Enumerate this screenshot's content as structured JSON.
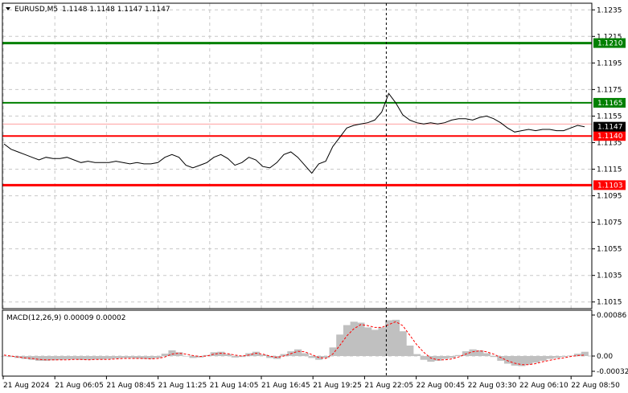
{
  "header": {
    "symbol": "EURUSD,M5",
    "ohlc": "1.1148 1.1148 1.1147 1.1147",
    "macd_title": "MACD(12,26,9) 0.00009 0.00002"
  },
  "colors": {
    "background": "#ffffff",
    "grid": "#c8c8c8",
    "price_line": "#000000",
    "green_level": "#008000",
    "red_level": "#ff0000",
    "hist": "#c0c0c0",
    "signal": "#ff0000"
  },
  "chart_data": [
    {
      "type": "line",
      "title": "EURUSD,M5",
      "ylim": [
        1.101,
        1.124
      ],
      "y_ticks": [
        "1.1235",
        "1.1215",
        "1.1195",
        "1.1175",
        "1.1155",
        "1.1135",
        "1.1115",
        "1.1095",
        "1.1075",
        "1.1055",
        "1.1035",
        "1.1015"
      ],
      "x_ticks": [
        "21 Aug 2024",
        "21 Aug 06:05",
        "21 Aug 08:45",
        "21 Aug 11:25",
        "21 Aug 14:05",
        "21 Aug 16:45",
        "21 Aug 19:25",
        "21 Aug 22:05",
        "22 Aug 00:45",
        "22 Aug 03:30",
        "22 Aug 06:10",
        "22 Aug 08:50"
      ],
      "grid": true,
      "series": [
        {
          "close": [
            1.1134,
            1.113,
            1.1128,
            1.1126,
            1.1124,
            1.1122,
            1.1124,
            1.1123,
            1.1123,
            1.1124,
            1.1122,
            1.112,
            1.1121,
            1.112,
            1.112,
            1.112,
            1.1121,
            1.112,
            1.1119,
            1.112,
            1.1119,
            1.1119,
            1.112,
            1.1124,
            1.1126,
            1.1124,
            1.1118,
            1.1116,
            1.1118,
            1.112,
            1.1124,
            1.1126,
            1.1123,
            1.1118,
            1.112,
            1.1124,
            1.1122,
            1.1117,
            1.1116,
            1.112,
            1.1126,
            1.1128,
            1.1124,
            1.1118,
            1.1112,
            1.1119,
            1.1121,
            1.1132,
            1.1139,
            1.1146,
            1.1148,
            1.1149,
            1.115,
            1.1152,
            1.1158,
            1.1172,
            1.1165,
            1.1156,
            1.1152,
            1.115,
            1.1149,
            1.115,
            1.1149,
            1.115,
            1.1152,
            1.1153,
            1.1153,
            1.1152,
            1.1154,
            1.1155,
            1.1153,
            1.115,
            1.1146,
            1.1143,
            1.1144,
            1.1145,
            1.1144,
            1.1145,
            1.1145,
            1.1144,
            1.1144,
            1.1146,
            1.1148,
            1.1147
          ]
        }
      ],
      "levels": [
        {
          "value": 1.121,
          "label": "1.1210",
          "color": "#008000",
          "width": 3
        },
        {
          "value": 1.1165,
          "label": "1.1165",
          "color": "#008000",
          "width": 2
        },
        {
          "value": 1.114,
          "label": "1.1140",
          "color": "#ff0000",
          "width": 2
        },
        {
          "value": 1.1103,
          "label": "1.1103",
          "color": "#ff0000",
          "width": 3
        }
      ],
      "ask_line": {
        "value": 1.1149,
        "color": "#ffa0a0"
      },
      "current_price": {
        "value": 1.1147,
        "label": "1.1147"
      },
      "vertical_marker_label": "21 Aug 22:05"
    },
    {
      "type": "bar",
      "title": "MACD(12,26,9) 0.00009 0.00002",
      "ylim": [
        -0.00032,
        0.00086
      ],
      "y_ticks": [
        "0.00086",
        "0.00",
        "-0.00032"
      ],
      "series": [
        {
          "name": "MACD",
          "values": [
            0.0,
            -2e-05,
            -4e-05,
            -6e-05,
            -8e-05,
            -0.0001,
            -0.0001,
            -9e-05,
            -8e-05,
            -7e-05,
            -7e-05,
            -8e-05,
            -8e-05,
            -7e-05,
            -7e-05,
            -6e-05,
            -5e-05,
            -4e-05,
            -4e-05,
            -5e-05,
            -6e-05,
            -6e-05,
            -4e-05,
            5e-05,
            0.00012,
            8e-05,
            0.0,
            -4e-05,
            -3e-05,
            2e-05,
            8e-05,
            9e-05,
            4e-05,
            -3e-05,
            -2e-05,
            6e-05,
            9e-05,
            3e-05,
            -4e-05,
            -6e-05,
            4e-05,
            0.0001,
            0.00014,
            6e-05,
            -4e-05,
            -8e-05,
            -4e-05,
            0.00018,
            0.00045,
            0.00065,
            0.00072,
            0.0007,
            0.0006,
            0.00055,
            0.0006,
            0.00075,
            0.00076,
            0.00052,
            0.00022,
            4e-05,
            -8e-05,
            -0.00012,
            -0.0001,
            -6e-05,
            -4e-05,
            2e-05,
            0.0001,
            0.00014,
            0.00012,
            6e-05,
            -2e-05,
            -0.0001,
            -0.00016,
            -0.0002,
            -0.00021,
            -0.00018,
            -0.00014,
            -0.0001,
            -6e-05,
            -4e-05,
            -2e-05,
            1e-05,
            5e-05,
            9e-05
          ]
        },
        {
          "name": "Signal",
          "values": [
            2e-05,
            0.0,
            -2e-05,
            -4e-05,
            -5e-05,
            -7e-05,
            -8e-05,
            -8e-05,
            -8e-05,
            -8e-05,
            -7e-05,
            -7e-05,
            -8e-05,
            -7e-05,
            -7e-05,
            -7e-05,
            -6e-05,
            -5e-05,
            -5e-05,
            -5e-05,
            -5e-05,
            -6e-05,
            -5e-05,
            -2e-05,
            4e-05,
            6e-05,
            4e-05,
            1e-05,
            -1e-05,
            0.0,
            4e-05,
            6e-05,
            5e-05,
            2e-05,
            0.0,
            2e-05,
            6e-05,
            4e-05,
            0.0,
            -3e-05,
            0.0,
            5e-05,
            0.0001,
            9e-05,
            3e-05,
            -3e-05,
            -5e-05,
            4e-05,
            0.00022,
            0.00042,
            0.00057,
            0.00066,
            0.00064,
            0.0006,
            0.0006,
            0.00066,
            0.00072,
            0.00064,
            0.00044,
            0.00024,
            8e-05,
            -4e-05,
            -8e-05,
            -8e-05,
            -6e-05,
            -2e-05,
            4e-05,
            9e-05,
            0.00011,
            9e-05,
            4e-05,
            -3e-05,
            -0.0001,
            -0.00015,
            -0.00018,
            -0.00018,
            -0.00016,
            -0.00012,
            -9e-05,
            -6e-05,
            -4e-05,
            -1e-05,
            1e-05,
            2e-05
          ]
        }
      ]
    }
  ]
}
